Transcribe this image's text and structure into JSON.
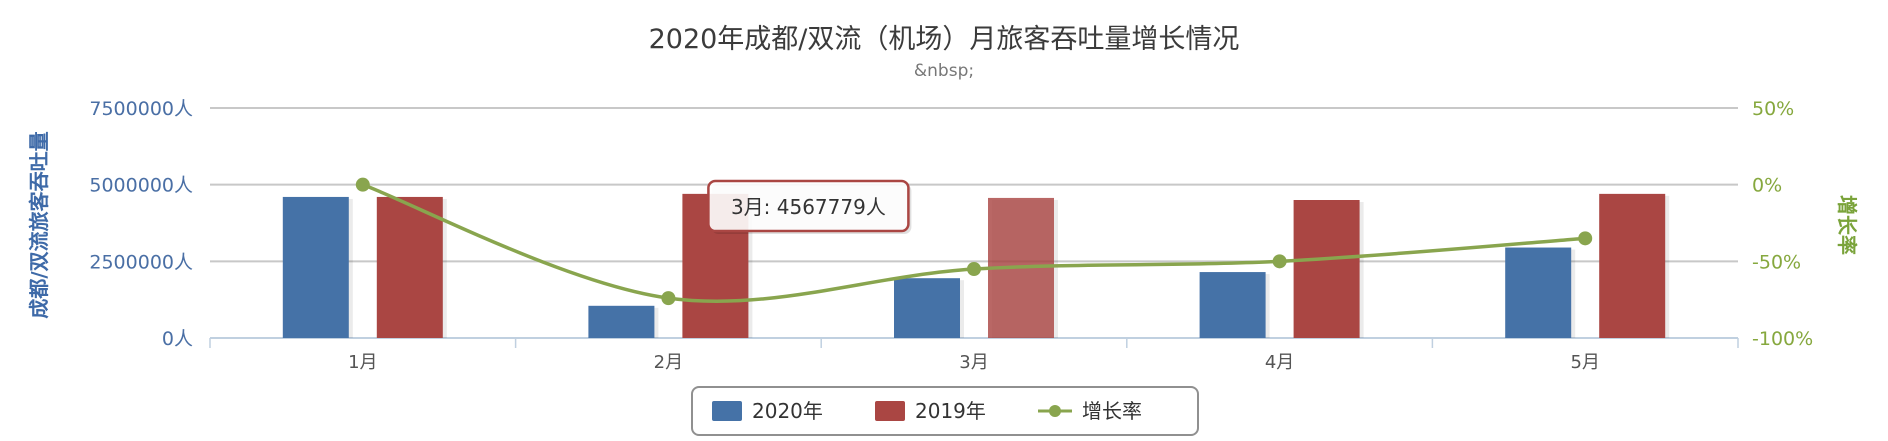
{
  "chart_data": {
    "type": "bar",
    "title": "2020年成都/双流（机场）月旅客吞吐量增长情况",
    "subtitle": "&nbsp;",
    "categories": [
      "1月",
      "2月",
      "3月",
      "4月",
      "5月"
    ],
    "series": [
      {
        "name": "2020年",
        "type": "bar",
        "axis": "left",
        "color": "#4572a7",
        "values": [
          4600000,
          1050000,
          1950000,
          2150000,
          2950000
        ]
      },
      {
        "name": "2019年",
        "type": "bar",
        "axis": "left",
        "color": "#aa4643",
        "values": [
          4600000,
          4700000,
          4567779,
          4500000,
          4700000
        ]
      },
      {
        "name": "增长率",
        "type": "line",
        "axis": "right",
        "color": "#89a54e",
        "values": [
          0,
          -74,
          -55,
          -50,
          -35
        ]
      }
    ],
    "left_axis": {
      "label": "成都/双流旅客吞吐量",
      "ylim": [
        0,
        7500000
      ],
      "ticks": [
        "0人",
        "2500000人",
        "5000000人",
        "7500000人"
      ]
    },
    "right_axis": {
      "label": "增长率",
      "ylim": [
        -100,
        50
      ],
      "ticks": [
        "-100%",
        "-50%",
        "0%",
        "50%"
      ]
    },
    "tooltip": {
      "text": "3月: 4567779人",
      "category_index": 2,
      "series_index": 1
    },
    "legend": {
      "placement": "bottom-center"
    },
    "grid": true
  }
}
